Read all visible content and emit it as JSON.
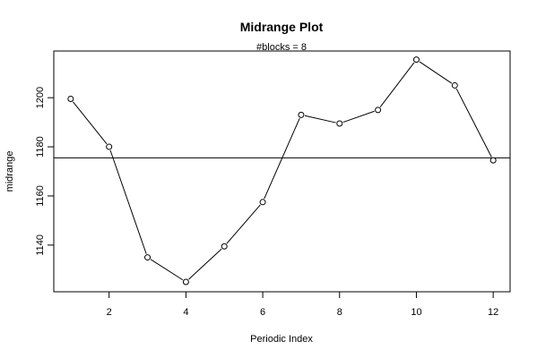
{
  "chart_data": {
    "type": "line",
    "title": "Midrange Plot",
    "subtitle": "#blocks =  8",
    "xlabel": "Periodic Index",
    "ylabel": "midrange",
    "x": [
      1,
      2,
      3,
      4,
      5,
      6,
      7,
      8,
      9,
      10,
      11,
      12
    ],
    "series": [
      {
        "values": [
          1199.5,
          1180,
          1135,
          1125,
          1139.5,
          1157.5,
          1193,
          1189.5,
          1195,
          1215.5,
          1205,
          1174.5
        ]
      }
    ],
    "reference_line": 1175.5,
    "xlim": [
      0.56,
      12.44
    ],
    "ylim": [
      1121,
      1219
    ],
    "x_ticks": [
      2,
      4,
      6,
      8,
      10,
      12
    ],
    "y_ticks": [
      1140,
      1160,
      1180,
      1200
    ],
    "grid": false,
    "colors": {
      "line": "#000000",
      "marker_fill": "#ffffff",
      "background": "#ffffff"
    }
  }
}
